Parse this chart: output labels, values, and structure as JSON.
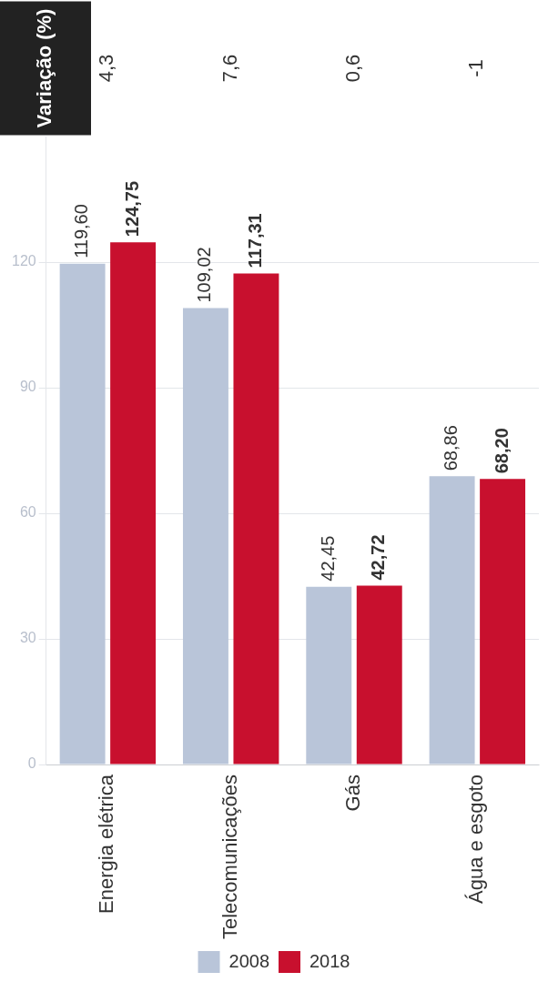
{
  "chart_data": {
    "type": "bar",
    "categories": [
      "Energia elétrica",
      "Telecomunicações",
      "Gás",
      "Água e esgoto"
    ],
    "series": [
      {
        "name": "2008",
        "color": "#b9c5d9",
        "values": [
          119.6,
          109.02,
          42.45,
          68.86
        ],
        "value_labels": [
          "119,60",
          "109,02",
          "42,45",
          "68,86"
        ]
      },
      {
        "name": "2018",
        "color": "#c8102e",
        "values": [
          124.75,
          117.31,
          42.72,
          68.2
        ],
        "value_labels": [
          "124,75",
          "117,31",
          "42,72",
          "68,20"
        ]
      }
    ],
    "ylim": [
      0,
      150
    ],
    "yticks": [
      0,
      30,
      60,
      90,
      120
    ],
    "grid": "y",
    "legend": "bottom",
    "annotations": [
      "Variação (%)",
      "4,3",
      "7,6",
      "0,6",
      "-1"
    ]
  }
}
